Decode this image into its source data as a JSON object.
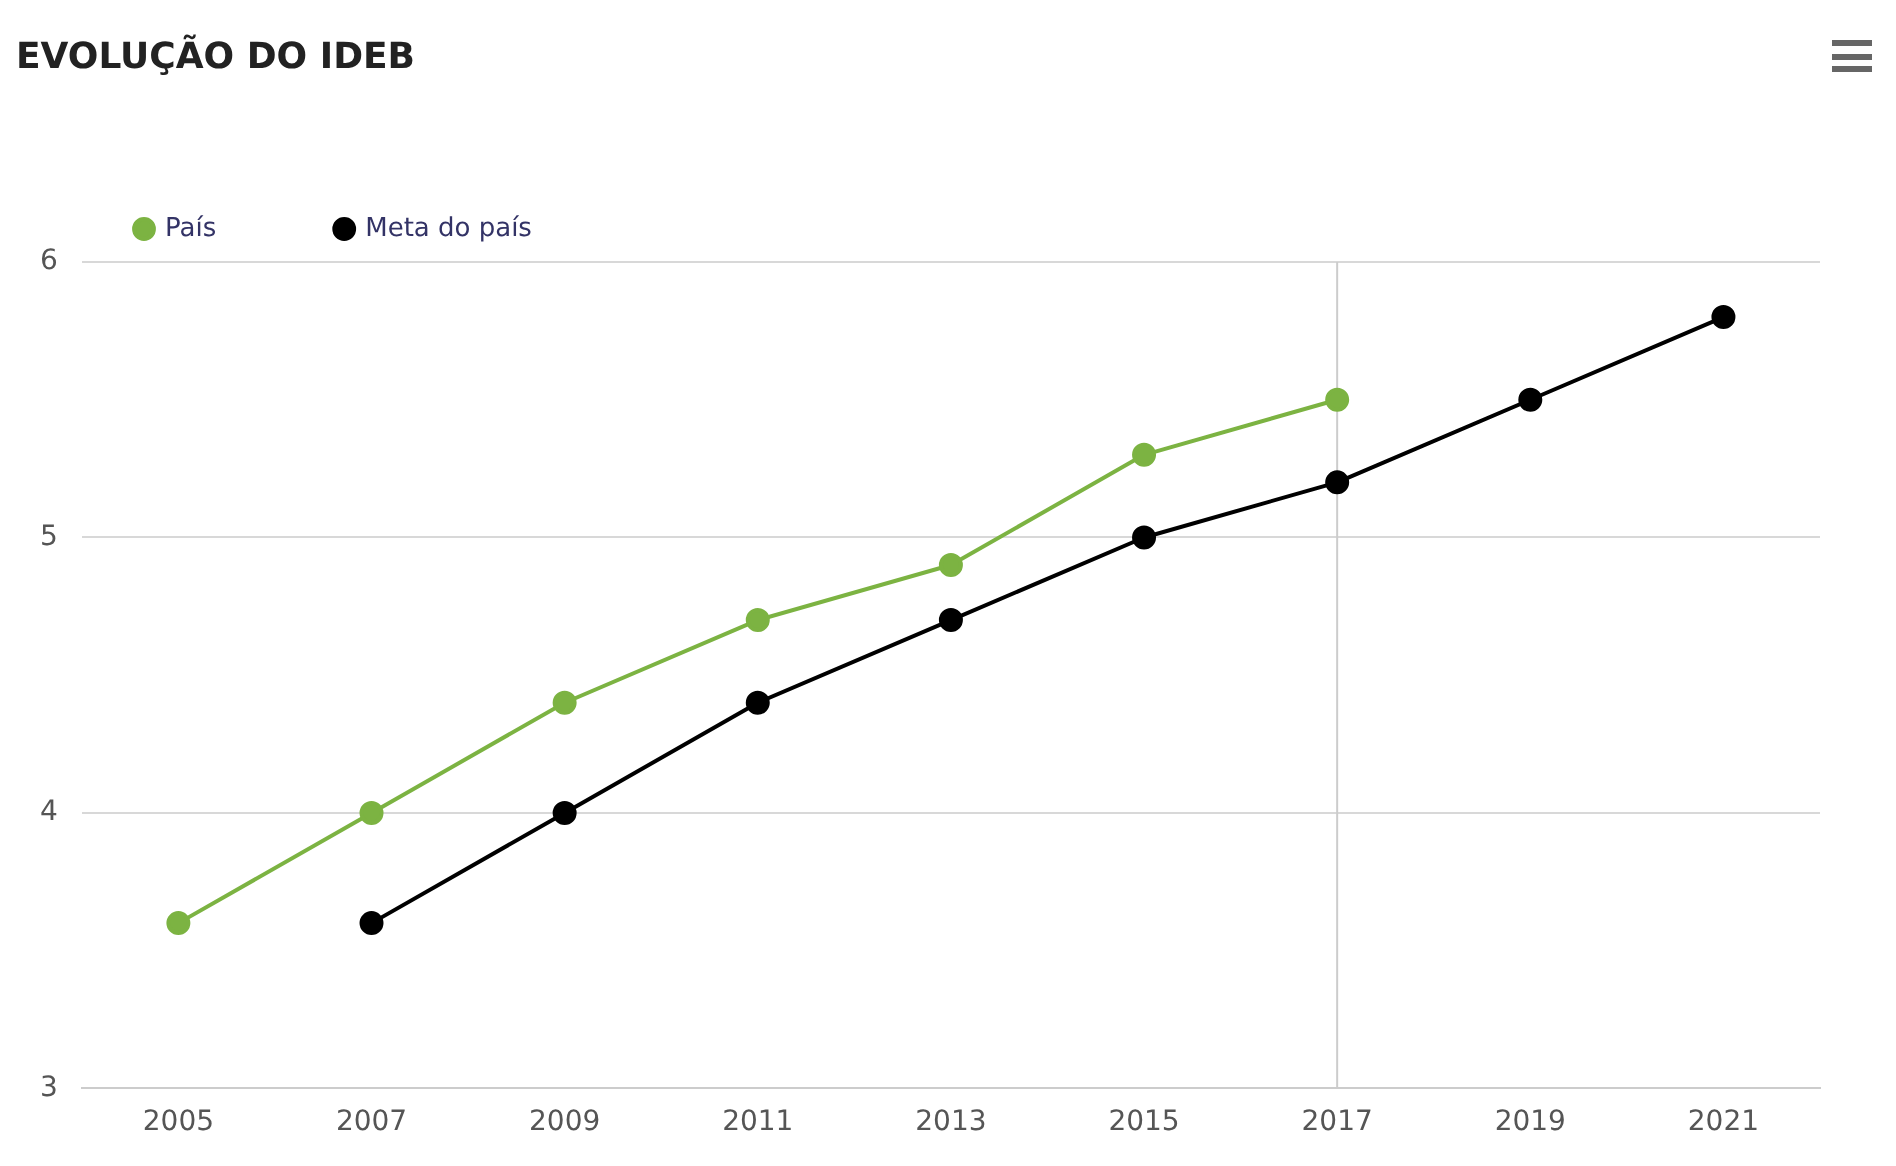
{
  "chart_data": {
    "type": "line",
    "title": "EVOLUÇÃO DO IDEB",
    "categories": [
      "2005",
      "2007",
      "2009",
      "2011",
      "2013",
      "2015",
      "2017",
      "2019",
      "2021"
    ],
    "series": [
      {
        "name": "País",
        "color": "#7cb342",
        "values": [
          3.6,
          4.0,
          4.4,
          4.7,
          4.9,
          5.3,
          5.5,
          null,
          null
        ]
      },
      {
        "name": "Meta do país",
        "color": "#000000",
        "values": [
          null,
          3.6,
          4.0,
          4.4,
          4.7,
          5.0,
          5.2,
          5.5,
          5.8
        ]
      }
    ],
    "ylim": [
      3,
      6
    ],
    "yticks": [
      3,
      4,
      5,
      6
    ],
    "grid": "y",
    "legend": "top left",
    "marker": "circle",
    "line_style": "solid",
    "ref_lines": [
      {
        "axis": "x",
        "value": "2017",
        "color": "#cccccc"
      }
    ]
  }
}
